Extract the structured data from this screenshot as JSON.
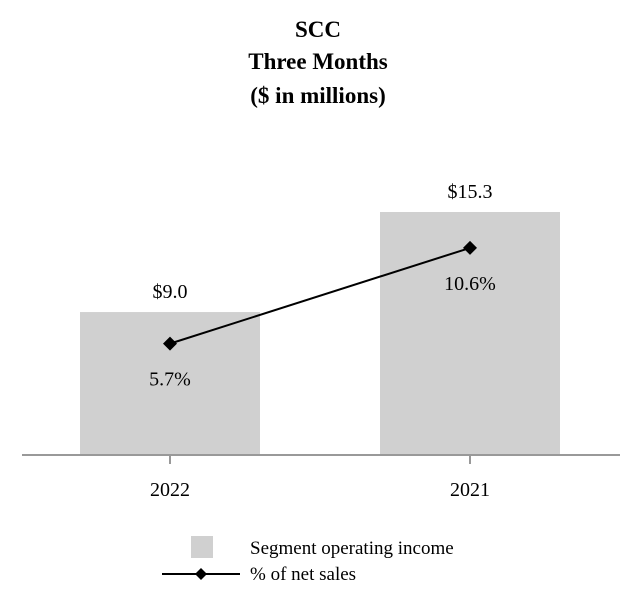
{
  "chart_data": {
    "type": "bar",
    "title_lines": [
      "SCC",
      "Three Months",
      "($ in millions)"
    ],
    "categories": [
      "2022",
      "2021"
    ],
    "series": [
      {
        "name": "Segment operating income",
        "type": "bar",
        "values": [
          9.0,
          15.3
        ],
        "labels": [
          "$9.0",
          "$15.3"
        ],
        "color": "#d0d0d0"
      },
      {
        "name": "% of net sales",
        "type": "line",
        "values": [
          5.7,
          10.6
        ],
        "labels": [
          "5.7%",
          "10.6%"
        ],
        "color": "#000000",
        "marker": "diamond"
      }
    ],
    "ylim": [
      0,
      17
    ],
    "line_ylim": [
      0,
      13
    ],
    "grid": false,
    "legend_position": "bottom-center"
  }
}
